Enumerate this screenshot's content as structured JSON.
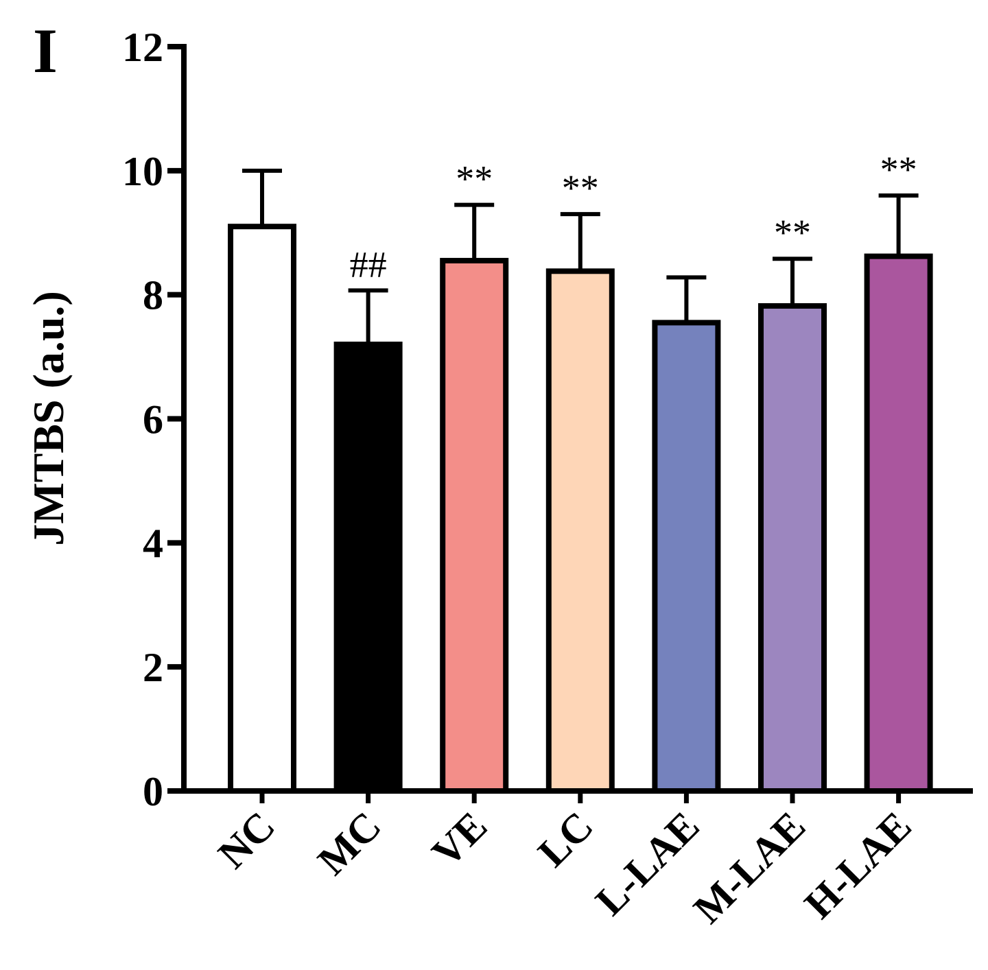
{
  "panel_label": "I",
  "chart_data": {
    "type": "bar",
    "title": "",
    "xlabel": "",
    "ylabel": "JMTBS (a.u.)",
    "ylim": [
      0,
      12
    ],
    "yticks": [
      0,
      2,
      4,
      6,
      8,
      10,
      12
    ],
    "grid": false,
    "categories": [
      "NC",
      "MC",
      "VE",
      "LC",
      "L-LAE",
      "M-LAE",
      "H-LAE"
    ],
    "values": [
      9.1,
      7.2,
      8.55,
      8.38,
      7.55,
      7.82,
      8.62
    ],
    "errors": [
      0.9,
      0.87,
      0.9,
      0.92,
      0.73,
      0.76,
      0.98
    ],
    "colors": [
      "#ffffff",
      "#000000",
      "#f38e89",
      "#fed6b7",
      "#7582bd",
      "#9c86bf",
      "#aa569e"
    ],
    "annotations": [
      "",
      "##",
      "**",
      "**",
      "",
      "**",
      "**"
    ]
  }
}
